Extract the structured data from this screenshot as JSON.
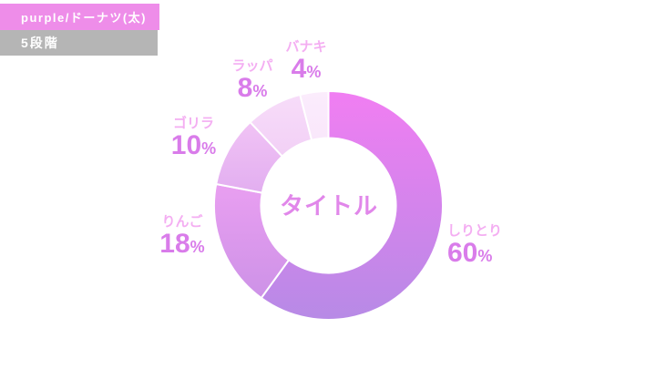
{
  "header": {
    "type_label": "purple/ドーナツ(太)",
    "level_label": "5段階"
  },
  "colors": {
    "badge_primary_bg": "#ee8de9",
    "badge_secondary_bg": "#b5b5b5",
    "badge_text": "#ffffff",
    "center_title_text": "#e187ea",
    "segment_name_text": "#f4aef2",
    "segment_value_text": "#d97cea",
    "divider": "#ffffff",
    "background": "#ffffff"
  },
  "chart_data": {
    "type": "pie",
    "subtype": "donut",
    "title": "タイトル",
    "percent_sign": "%",
    "start_angle_deg": 0,
    "direction": "clockwise",
    "inner_radius_ratio": 0.59,
    "legend_position": "around",
    "segments": [
      {
        "label": "しりとり",
        "value": 60,
        "color_top": "#f17ef2",
        "color_bottom": "#b78ae6"
      },
      {
        "label": "りんご",
        "value": 18,
        "color_top": "#e99ff1",
        "color_bottom": "#cd92e7"
      },
      {
        "label": "ゴリラ",
        "value": 10,
        "color_top": "#f1c3f5",
        "color_bottom": "#e2aef0"
      },
      {
        "label": "ラッパ",
        "value": 8,
        "color_top": "#f7dcf9",
        "color_bottom": "#f2d0f6"
      },
      {
        "label": "バナキ",
        "value": 4,
        "color_top": "#fbecfc",
        "color_bottom": "#f9e7fb"
      }
    ]
  }
}
